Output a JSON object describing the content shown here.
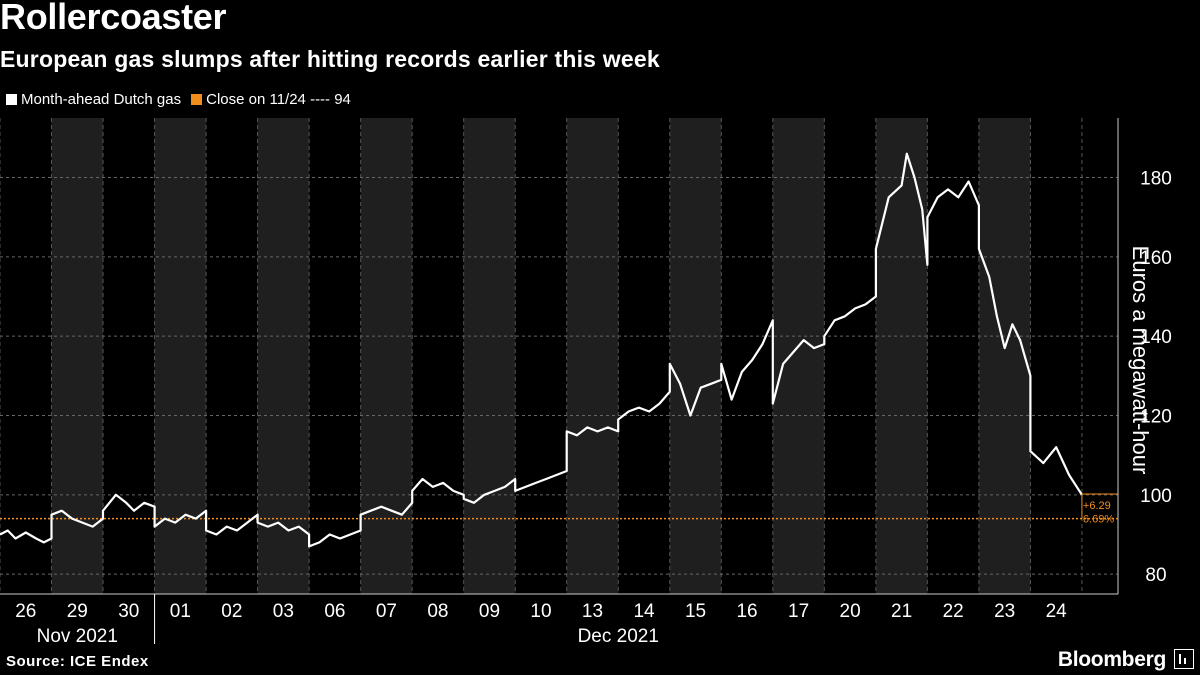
{
  "header": {
    "title": "Rollercoaster",
    "subtitle": "European gas slumps after hitting records earlier this week"
  },
  "legend": {
    "series_label": "Month-ahead Dutch gas",
    "series_color": "#ffffff",
    "ref_label": "Close on 11/24 ---- 94",
    "ref_color": "#f28c1c"
  },
  "footer": {
    "source": "Source: ICE Endex",
    "brand": "Bloomberg"
  },
  "chart_data": {
    "type": "line",
    "ylabel": "Euros a megawatt-hour",
    "ylim": [
      75,
      195
    ],
    "y_ticks": [
      80,
      100,
      120,
      140,
      160,
      180
    ],
    "grid": true,
    "x_day_labels": [
      "26",
      "29",
      "30",
      "01",
      "02",
      "03",
      "06",
      "07",
      "08",
      "09",
      "10",
      "13",
      "14",
      "15",
      "16",
      "17",
      "20",
      "21",
      "22",
      "23",
      "24"
    ],
    "x_month_labels": [
      {
        "label": "Nov 2021",
        "days": [
          "26",
          "29",
          "30"
        ]
      },
      {
        "label": "Dec 2021",
        "days": [
          "01",
          "02",
          "03",
          "06",
          "07",
          "08",
          "09",
          "10",
          "13",
          "14",
          "15",
          "16",
          "17",
          "20",
          "21",
          "22",
          "23",
          "24"
        ]
      }
    ],
    "reference_line": {
      "label": "Close on 11/24",
      "value": 94
    },
    "last_value": 100.2,
    "change_label": "+6.29",
    "change_pct_label": "6.69%",
    "series": [
      {
        "name": "Month-ahead Dutch gas",
        "points": [
          [
            "26",
            0.0,
            90
          ],
          [
            "26",
            0.15,
            91
          ],
          [
            "26",
            0.3,
            89
          ],
          [
            "26",
            0.5,
            90.5
          ],
          [
            "26",
            0.7,
            89
          ],
          [
            "26",
            0.85,
            88
          ],
          [
            "26",
            1.0,
            89
          ],
          [
            "29",
            0.0,
            95
          ],
          [
            "29",
            0.2,
            96
          ],
          [
            "29",
            0.4,
            94
          ],
          [
            "29",
            0.6,
            93
          ],
          [
            "29",
            0.8,
            92
          ],
          [
            "29",
            1.0,
            94
          ],
          [
            "30",
            0.0,
            96
          ],
          [
            "30",
            0.25,
            100
          ],
          [
            "30",
            0.45,
            98
          ],
          [
            "30",
            0.6,
            96
          ],
          [
            "30",
            0.8,
            98
          ],
          [
            "30",
            1.0,
            97
          ],
          [
            "01",
            0.0,
            92
          ],
          [
            "01",
            0.2,
            94
          ],
          [
            "01",
            0.4,
            93
          ],
          [
            "01",
            0.6,
            95
          ],
          [
            "01",
            0.8,
            94
          ],
          [
            "01",
            1.0,
            96
          ],
          [
            "02",
            0.0,
            91
          ],
          [
            "02",
            0.2,
            90
          ],
          [
            "02",
            0.4,
            92
          ],
          [
            "02",
            0.6,
            91
          ],
          [
            "02",
            0.8,
            93
          ],
          [
            "02",
            1.0,
            95
          ],
          [
            "03",
            0.0,
            93
          ],
          [
            "03",
            0.2,
            92
          ],
          [
            "03",
            0.4,
            93
          ],
          [
            "03",
            0.6,
            91
          ],
          [
            "03",
            0.8,
            92
          ],
          [
            "03",
            1.0,
            90
          ],
          [
            "06",
            0.0,
            87
          ],
          [
            "06",
            0.2,
            88
          ],
          [
            "06",
            0.4,
            90
          ],
          [
            "06",
            0.6,
            89
          ],
          [
            "06",
            0.8,
            90
          ],
          [
            "06",
            1.0,
            91
          ],
          [
            "07",
            0.0,
            95
          ],
          [
            "07",
            0.2,
            96
          ],
          [
            "07",
            0.4,
            97
          ],
          [
            "07",
            0.6,
            96
          ],
          [
            "07",
            0.8,
            95
          ],
          [
            "07",
            1.0,
            98
          ],
          [
            "08",
            0.0,
            101
          ],
          [
            "08",
            0.2,
            104
          ],
          [
            "08",
            0.4,
            102
          ],
          [
            "08",
            0.6,
            103
          ],
          [
            "08",
            0.8,
            101
          ],
          [
            "08",
            1.0,
            100
          ],
          [
            "09",
            0.0,
            99
          ],
          [
            "09",
            0.2,
            98
          ],
          [
            "09",
            0.4,
            100
          ],
          [
            "09",
            0.6,
            101
          ],
          [
            "09",
            0.8,
            102
          ],
          [
            "09",
            1.0,
            104
          ],
          [
            "10",
            0.0,
            101
          ],
          [
            "10",
            0.2,
            102
          ],
          [
            "10",
            0.4,
            103
          ],
          [
            "10",
            0.6,
            104
          ],
          [
            "10",
            0.8,
            105
          ],
          [
            "10",
            1.0,
            106
          ],
          [
            "13",
            0.0,
            116
          ],
          [
            "13",
            0.2,
            115
          ],
          [
            "13",
            0.4,
            117
          ],
          [
            "13",
            0.6,
            116
          ],
          [
            "13",
            0.8,
            117
          ],
          [
            "13",
            1.0,
            116
          ],
          [
            "14",
            0.0,
            119
          ],
          [
            "14",
            0.2,
            121
          ],
          [
            "14",
            0.4,
            122
          ],
          [
            "14",
            0.6,
            121
          ],
          [
            "14",
            0.8,
            123
          ],
          [
            "14",
            1.0,
            126
          ],
          [
            "15",
            0.0,
            133
          ],
          [
            "15",
            0.2,
            128
          ],
          [
            "15",
            0.4,
            120
          ],
          [
            "15",
            0.6,
            127
          ],
          [
            "15",
            0.8,
            128
          ],
          [
            "15",
            1.0,
            129
          ],
          [
            "16",
            0.0,
            133
          ],
          [
            "16",
            0.2,
            124
          ],
          [
            "16",
            0.4,
            131
          ],
          [
            "16",
            0.6,
            134
          ],
          [
            "16",
            0.8,
            138
          ],
          [
            "16",
            1.0,
            144
          ],
          [
            "17",
            0.0,
            123
          ],
          [
            "17",
            0.2,
            133
          ],
          [
            "17",
            0.4,
            136
          ],
          [
            "17",
            0.6,
            139
          ],
          [
            "17",
            0.8,
            137
          ],
          [
            "17",
            1.0,
            138
          ],
          [
            "20",
            0.0,
            140
          ],
          [
            "20",
            0.2,
            144
          ],
          [
            "20",
            0.4,
            145
          ],
          [
            "20",
            0.6,
            147
          ],
          [
            "20",
            0.8,
            148
          ],
          [
            "20",
            1.0,
            150
          ],
          [
            "21",
            0.0,
            162
          ],
          [
            "21",
            0.25,
            175
          ],
          [
            "21",
            0.5,
            178
          ],
          [
            "21",
            0.6,
            186
          ],
          [
            "21",
            0.75,
            180
          ],
          [
            "21",
            0.9,
            172
          ],
          [
            "21",
            1.0,
            158
          ],
          [
            "22",
            0.0,
            170
          ],
          [
            "22",
            0.2,
            175
          ],
          [
            "22",
            0.4,
            177
          ],
          [
            "22",
            0.6,
            175
          ],
          [
            "22",
            0.8,
            179
          ],
          [
            "22",
            1.0,
            173
          ],
          [
            "23",
            0.0,
            162
          ],
          [
            "23",
            0.2,
            155
          ],
          [
            "23",
            0.35,
            145
          ],
          [
            "23",
            0.5,
            137
          ],
          [
            "23",
            0.65,
            143
          ],
          [
            "23",
            0.8,
            139
          ],
          [
            "23",
            1.0,
            130
          ],
          [
            "24",
            0.0,
            111
          ],
          [
            "24",
            0.25,
            108
          ],
          [
            "24",
            0.5,
            112
          ],
          [
            "24",
            0.75,
            105
          ],
          [
            "24",
            1.0,
            100
          ]
        ]
      }
    ]
  }
}
